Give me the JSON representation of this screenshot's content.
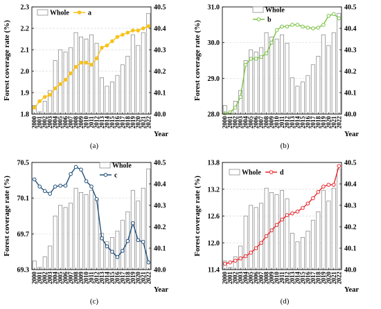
{
  "chart_data": [
    {
      "type": "bar",
      "caption": "(a)",
      "xlabel": "Year",
      "ylabel": "Forest coverage rate (%)",
      "categories": [
        "2000",
        "2001",
        "2002",
        "2003",
        "2004",
        "2005",
        "2006",
        "2007",
        "2008",
        "2009",
        "2010",
        "2011",
        "2012",
        "2013",
        "2014",
        "2015",
        "2016",
        "2017",
        "2018",
        "2019",
        "2020",
        "2021",
        "2022"
      ],
      "ylim": [
        1.8,
        2.3
      ],
      "yticks": [
        "1.8",
        "1.9",
        "2.0",
        "2.1",
        "2.2",
        "2.3"
      ],
      "y2lim": [
        40.0,
        40.5
      ],
      "y2ticks": [
        "40.0",
        "40.1",
        "40.2",
        "40.3",
        "40.4",
        "40.5"
      ],
      "grid": true,
      "legend": "top-left",
      "series": [
        {
          "name": "Whole",
          "type": "bar",
          "axis": "right",
          "values": [
            40.04,
            40.01,
            40.06,
            40.11,
            40.25,
            40.3,
            40.29,
            40.31,
            40.38,
            40.36,
            40.35,
            40.37,
            40.33,
            40.17,
            40.13,
            40.15,
            40.18,
            40.23,
            40.27,
            40.37,
            40.32,
            40.38,
            40.47
          ]
        },
        {
          "name": "a",
          "type": "line",
          "axis": "left",
          "values": [
            1.83,
            1.86,
            1.88,
            1.89,
            1.92,
            1.94,
            1.96,
            1.99,
            2.02,
            2.04,
            2.04,
            2.03,
            2.06,
            2.11,
            2.12,
            2.14,
            2.16,
            2.17,
            2.18,
            2.19,
            2.19,
            2.2,
            2.21
          ]
        }
      ],
      "colors": {
        "bar_fill": "#ffffff",
        "bar_edge": "#8c8c8c",
        "line": "#f7c31c",
        "marker_fill": "#f7c31c"
      }
    },
    {
      "type": "bar",
      "caption": "(b)",
      "xlabel": "Year",
      "ylabel": "Forest coverage rate (%)",
      "categories": [
        "2000",
        "2001",
        "2002",
        "2003",
        "2004",
        "2005",
        "2006",
        "2007",
        "2008",
        "2009",
        "2010",
        "2011",
        "2012",
        "2013",
        "2014",
        "2015",
        "2016",
        "2017",
        "2018",
        "2019",
        "2020",
        "2021",
        "2022"
      ],
      "ylim": [
        28.0,
        31.0
      ],
      "yticks": [
        "28.0",
        "29.0",
        "30.0",
        "31.0"
      ],
      "y2lim": [
        40.0,
        40.5
      ],
      "y2ticks": [
        "40.0",
        "40.1",
        "40.2",
        "40.3",
        "40.4",
        "40.5"
      ],
      "grid": true,
      "legend": "top-left",
      "series": [
        {
          "name": "Whole",
          "type": "bar",
          "axis": "right",
          "values": [
            40.04,
            40.01,
            40.06,
            40.11,
            40.25,
            40.3,
            40.29,
            40.31,
            40.38,
            40.36,
            40.35,
            40.37,
            40.33,
            40.17,
            40.13,
            40.15,
            40.18,
            40.23,
            40.27,
            40.37,
            40.32,
            40.38,
            40.47
          ]
        },
        {
          "name": "b",
          "type": "line",
          "axis": "left",
          "values": [
            28.02,
            28.05,
            28.18,
            28.48,
            29.38,
            29.55,
            29.55,
            29.6,
            29.7,
            30.0,
            30.35,
            30.45,
            30.45,
            30.5,
            30.5,
            30.45,
            30.42,
            30.4,
            30.42,
            30.5,
            30.75,
            30.8,
            30.68
          ]
        }
      ],
      "colors": {
        "bar_fill": "#ffffff",
        "bar_edge": "#8c8c8c",
        "line": "#7ac143",
        "marker_fill": "#ffffff"
      }
    },
    {
      "type": "bar",
      "caption": "(c)",
      "xlabel": "Year",
      "ylabel": "Forest coverage rate (%)",
      "categories": [
        "2000",
        "2001",
        "2002",
        "2003",
        "2004",
        "2005",
        "2006",
        "2007",
        "2008",
        "2009",
        "2010",
        "2011",
        "2012",
        "2013",
        "2014",
        "2015",
        "2016",
        "2017",
        "2018",
        "2019",
        "2020",
        "2021",
        "2022"
      ],
      "ylim": [
        69.3,
        70.5
      ],
      "yticks": [
        "69.3",
        "69.7",
        "70.1",
        "70.5"
      ],
      "y2lim": [
        40.0,
        40.5
      ],
      "y2ticks": [
        "40.0",
        "40.1",
        "40.2",
        "40.3",
        "40.4",
        "40.5"
      ],
      "grid": true,
      "legend": "top-right",
      "series": [
        {
          "name": "Whole",
          "type": "bar",
          "axis": "right",
          "values": [
            40.04,
            40.01,
            40.06,
            40.11,
            40.25,
            40.3,
            40.29,
            40.31,
            40.38,
            40.36,
            40.35,
            40.37,
            40.33,
            40.17,
            40.13,
            40.15,
            40.18,
            40.23,
            40.27,
            40.37,
            40.32,
            40.38,
            40.47
          ]
        },
        {
          "name": "c",
          "type": "line",
          "axis": "left",
          "values": [
            70.31,
            70.23,
            70.18,
            70.15,
            70.23,
            70.24,
            70.24,
            70.37,
            70.45,
            70.42,
            70.29,
            70.23,
            70.09,
            69.65,
            69.56,
            69.5,
            69.44,
            69.51,
            69.62,
            69.82,
            69.63,
            69.61,
            69.38
          ]
        }
      ],
      "colors": {
        "bar_fill": "#ffffff",
        "bar_edge": "#8c8c8c",
        "line": "#1f4e79",
        "marker_fill": "#ffffff"
      }
    },
    {
      "type": "bar",
      "caption": "(d)",
      "xlabel": "Year",
      "ylabel": "Forest coverage rate (%)",
      "categories": [
        "2000",
        "2001",
        "2002",
        "2003",
        "2004",
        "2005",
        "2006",
        "2007",
        "2008",
        "2009",
        "2010",
        "2011",
        "2012",
        "2013",
        "2014",
        "2015",
        "2016",
        "2017",
        "2018",
        "2019",
        "2020",
        "2021",
        "2022"
      ],
      "ylim": [
        11.4,
        13.8
      ],
      "yticks": [
        "11.4",
        "12.0",
        "12.6",
        "13.2",
        "13.8"
      ],
      "y2lim": [
        40.0,
        40.5
      ],
      "y2ticks": [
        "40.0",
        "40.1",
        "40.2",
        "40.3",
        "40.4",
        "40.5"
      ],
      "grid": true,
      "legend": "top-left",
      "series": [
        {
          "name": "Whole",
          "type": "bar",
          "axis": "right",
          "values": [
            40.04,
            40.01,
            40.06,
            40.11,
            40.25,
            40.3,
            40.29,
            40.31,
            40.38,
            40.36,
            40.35,
            40.37,
            40.33,
            40.17,
            40.13,
            40.15,
            40.18,
            40.23,
            40.27,
            40.37,
            40.32,
            40.38,
            40.47
          ]
        },
        {
          "name": "d",
          "type": "line",
          "axis": "left",
          "values": [
            11.53,
            11.56,
            11.6,
            11.65,
            11.7,
            11.78,
            11.88,
            12.0,
            12.15,
            12.28,
            12.4,
            12.52,
            12.62,
            12.66,
            12.7,
            12.78,
            12.88,
            13.0,
            13.14,
            13.26,
            13.3,
            13.3,
            13.72
          ]
        }
      ],
      "colors": {
        "bar_fill": "#ffffff",
        "bar_edge": "#8c8c8c",
        "line": "#e8262b",
        "marker_fill": "#ffffff"
      }
    }
  ]
}
